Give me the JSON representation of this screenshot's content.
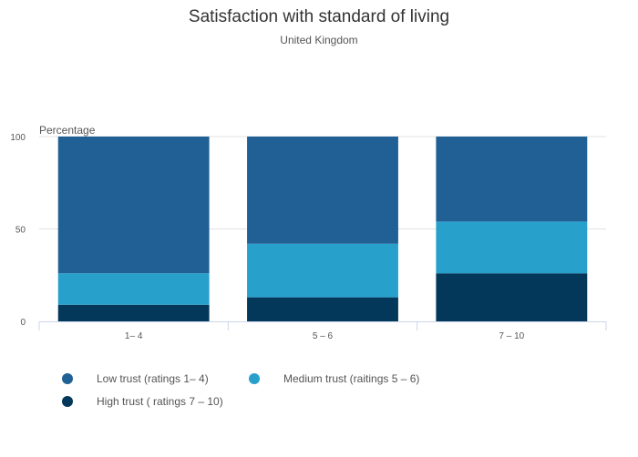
{
  "chart_data": {
    "type": "bar",
    "stacked": true,
    "title": "Satisfaction with standard of living",
    "subtitle": "United Kingdom",
    "xlabel": "",
    "ylabel": "Percentage",
    "ylim": [
      0,
      100
    ],
    "yticks": [
      0,
      50,
      100
    ],
    "categories": [
      "1– 4",
      "5 – 6",
      "7 – 10"
    ],
    "series": [
      {
        "name": "High trust ( ratings 7 – 10)",
        "color": "#04385a",
        "values": [
          9,
          13,
          26
        ]
      },
      {
        "name": "Medium trust (raitings 5 – 6)",
        "color": "#27a0cc",
        "values": [
          17,
          29,
          28
        ]
      },
      {
        "name": "Low trust (ratings 1– 4)",
        "color": "#206095",
        "values": [
          74,
          58,
          46
        ]
      }
    ],
    "legend": [
      {
        "name": "Low trust (ratings 1– 4)",
        "color": "#206095"
      },
      {
        "name": "Medium trust (raitings 5 – 6)",
        "color": "#27a0cc"
      },
      {
        "name": "High trust ( ratings 7 – 10)",
        "color": "#04385a"
      }
    ],
    "grid": true,
    "legend_position": "bottom-left"
  }
}
